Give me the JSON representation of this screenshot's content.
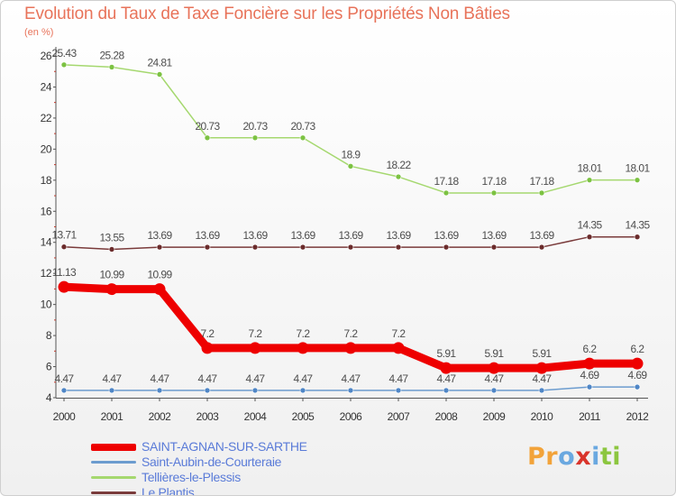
{
  "header": {
    "title": "Evolution du Taux de Taxe Foncière sur les Propriétés Non Bâties",
    "unit": "(en %)"
  },
  "colors": {
    "title": "#e8735a",
    "axis": "#555555",
    "grid_tick": "#c0392b",
    "legend_text": "#5a7bd8",
    "label_text": "#4d4d4d"
  },
  "logo": {
    "letters": [
      "P",
      "r",
      "o",
      "x",
      "i",
      "t",
      "i"
    ],
    "colors": [
      "#f2a33a",
      "#f2a33a",
      "#6aa8e0",
      "#d9342b",
      "#6aa8e0",
      "#8cc63f",
      "#8cc63f"
    ]
  },
  "chart_data": {
    "type": "line",
    "title": "Evolution du Taux de Taxe Foncière sur les Propriétés Non Bâties",
    "ylabel": "(en %)",
    "xlabel": "",
    "ylim": [
      4,
      26
    ],
    "yticks": [
      4,
      6,
      8,
      10,
      12,
      14,
      16,
      18,
      20,
      22,
      24,
      26
    ],
    "categories": [
      "2000",
      "2001",
      "2002",
      "2003",
      "2004",
      "2005",
      "2006",
      "2007",
      "2008",
      "2009",
      "2010",
      "2011",
      "2012"
    ],
    "legend_position": "bottom-left",
    "series": [
      {
        "name": "SAINT-AGNAN-SUR-SARTHE",
        "color": "#ee0000",
        "marker": "#ee0000",
        "width": "thick",
        "values": [
          11.13,
          10.99,
          10.99,
          7.2,
          7.2,
          7.2,
          7.2,
          7.2,
          5.91,
          5.91,
          5.91,
          6.2,
          6.2
        ],
        "labels": [
          "11.13",
          "10.99",
          "10.99",
          "7.2",
          "7.2",
          "7.2",
          "7.2",
          "7.2",
          "5.91",
          "5.91",
          "5.91",
          "6.2",
          "6.2"
        ]
      },
      {
        "name": "Saint-Aubin-de-Courteraie",
        "color": "#6c9ccf",
        "marker": "#4f86c6",
        "width": "thin",
        "values": [
          4.47,
          4.47,
          4.47,
          4.47,
          4.47,
          4.47,
          4.47,
          4.47,
          4.47,
          4.47,
          4.47,
          4.69,
          4.69
        ],
        "labels": [
          "4.47",
          "4.47",
          "4.47",
          "4.47",
          "4.47",
          "4.47",
          "4.47",
          "4.47",
          "4.47",
          "4.47",
          "4.47",
          "4.69",
          "4.69"
        ]
      },
      {
        "name": "Tellières-le-Plessis",
        "color": "#a5d86f",
        "marker": "#7cc242",
        "width": "thin",
        "values": [
          25.43,
          25.28,
          24.81,
          20.73,
          20.73,
          20.73,
          18.9,
          18.22,
          17.18,
          17.18,
          17.18,
          18.01,
          18.01
        ],
        "labels": [
          "25.43",
          "25.28",
          "24.81",
          "20.73",
          "20.73",
          "20.73",
          "18.9",
          "18.22",
          "17.18",
          "17.18",
          "17.18",
          "18.01",
          "18.01"
        ]
      },
      {
        "name": "Le Plantis",
        "color": "#7a3b3b",
        "marker": "#6b2c2c",
        "width": "thin",
        "values": [
          13.71,
          13.55,
          13.69,
          13.69,
          13.69,
          13.69,
          13.69,
          13.69,
          13.69,
          13.69,
          13.69,
          14.35,
          14.35
        ],
        "labels": [
          "13.71",
          "13.55",
          "13.69",
          "13.69",
          "13.69",
          "13.69",
          "13.69",
          "13.69",
          "13.69",
          "13.69",
          "13.69",
          "14.35",
          "14.35"
        ]
      }
    ]
  }
}
